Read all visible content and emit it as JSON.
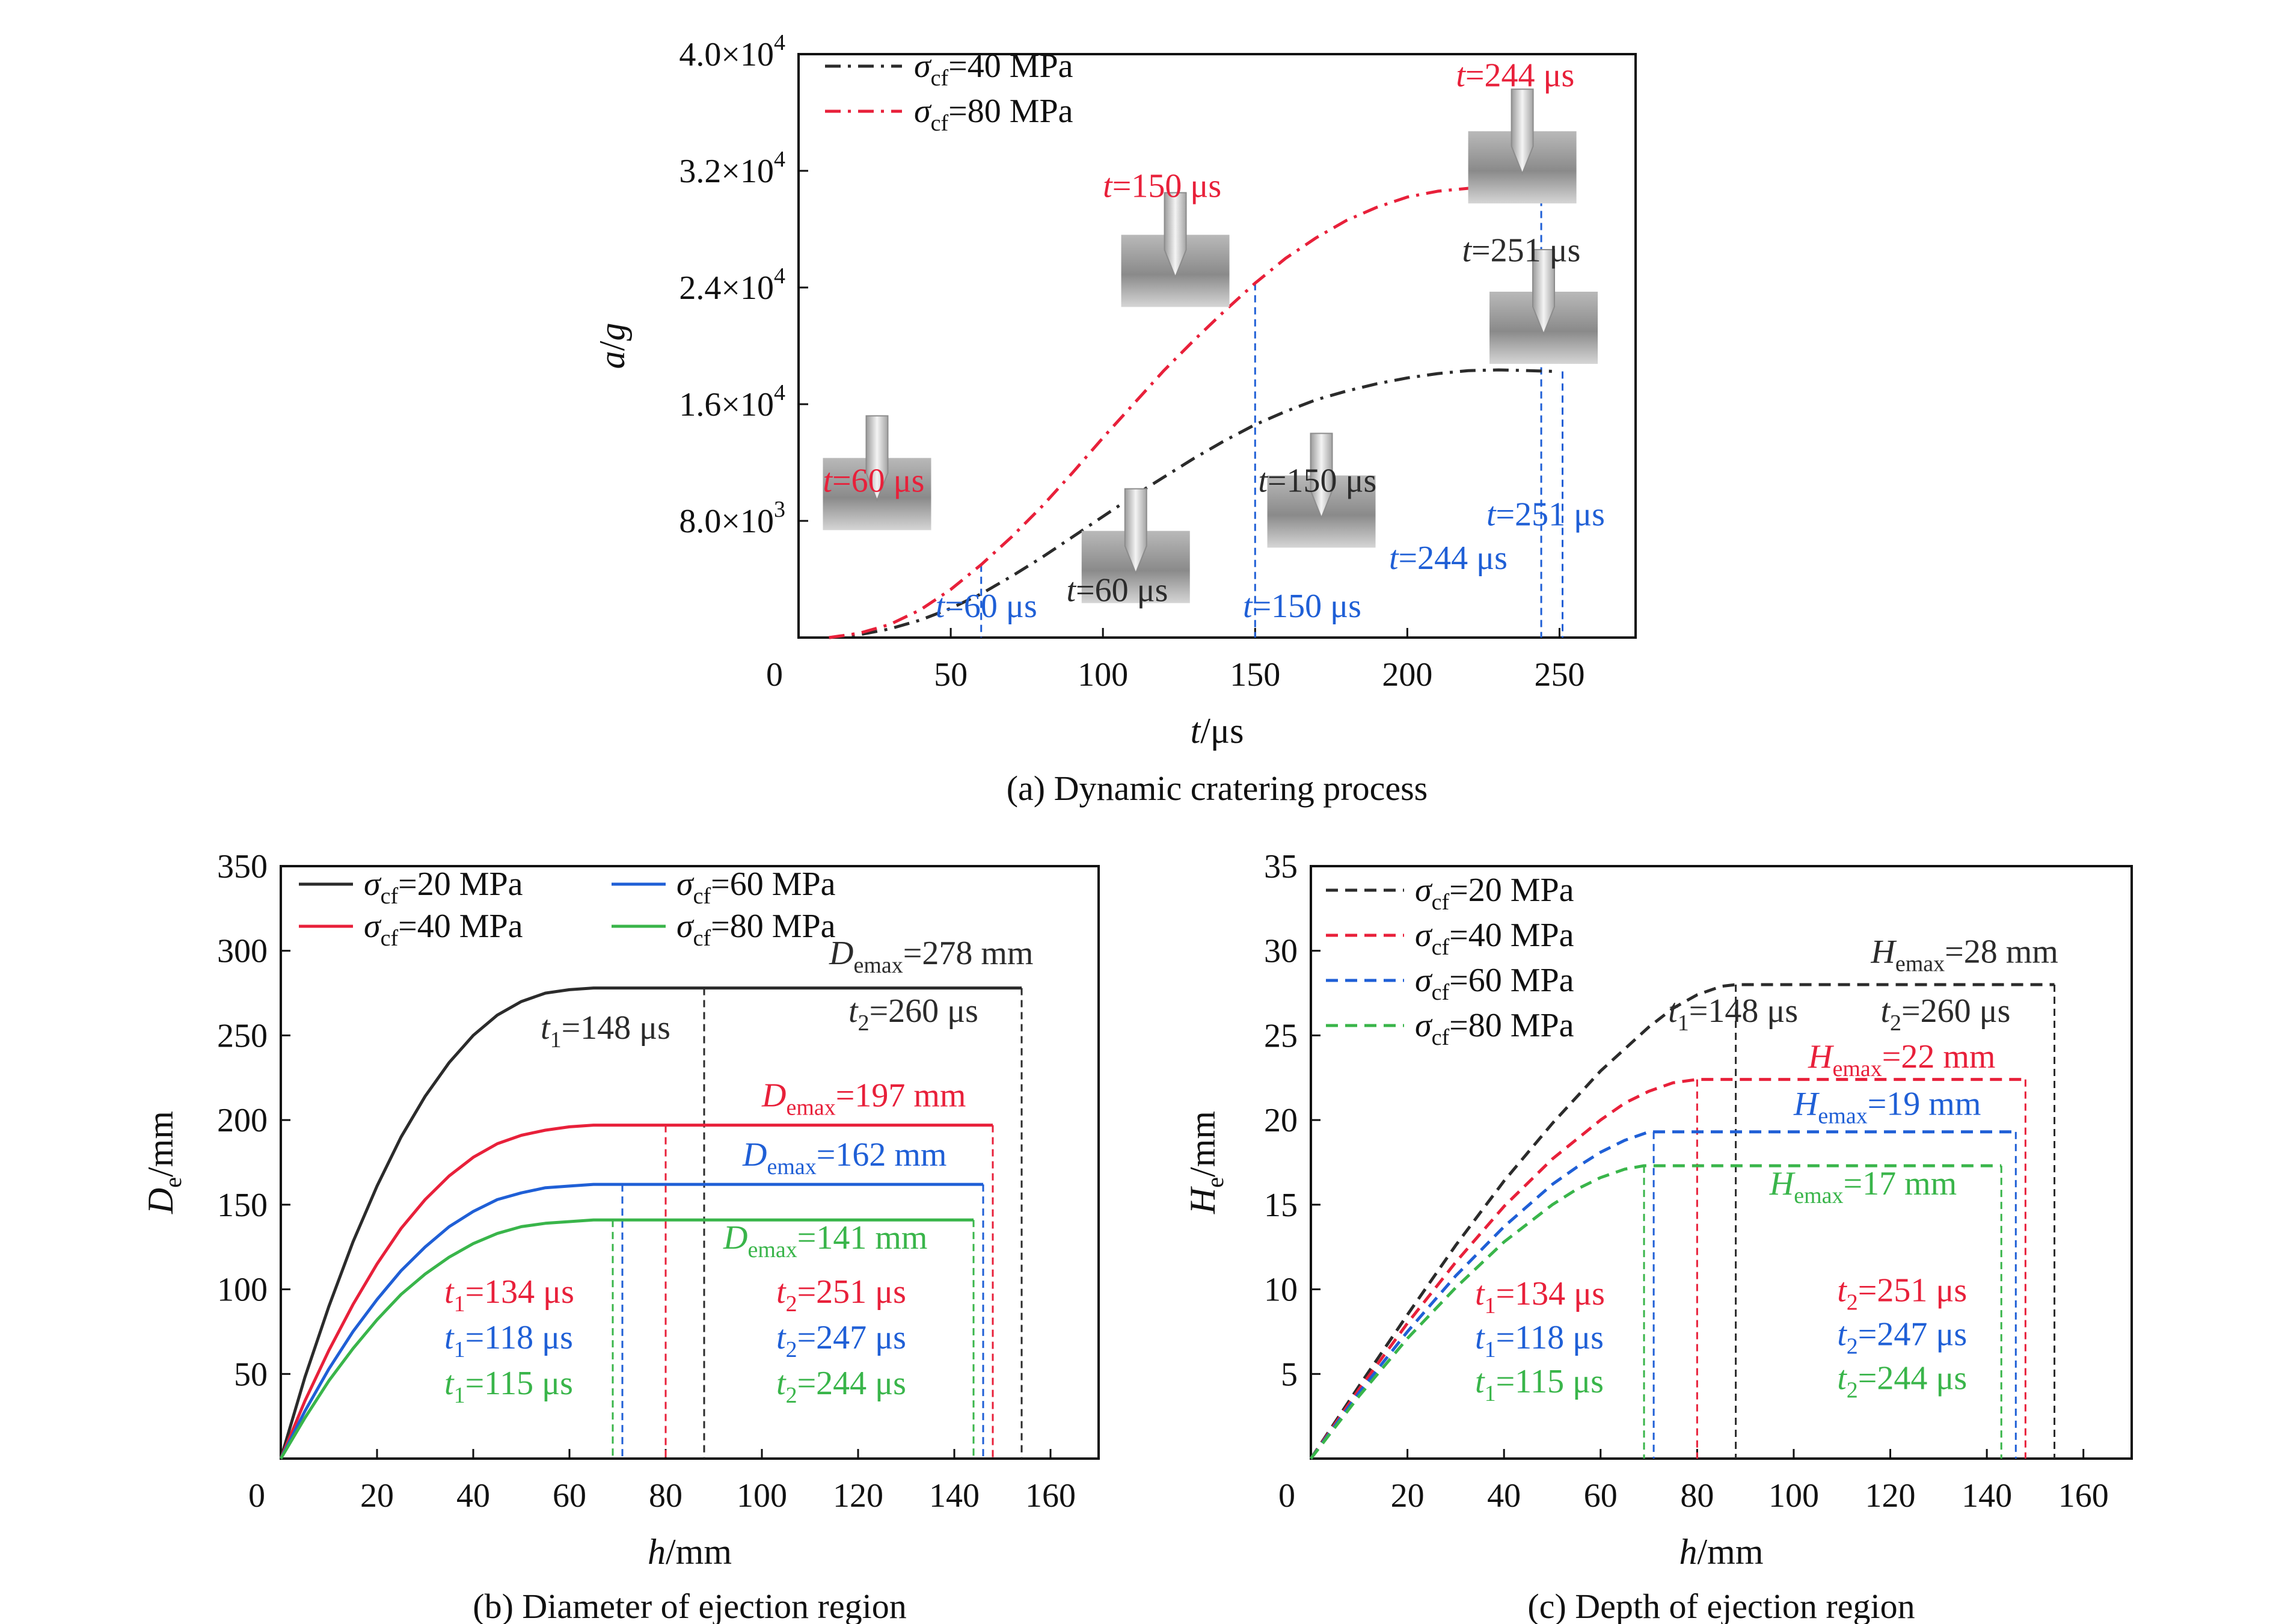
{
  "colors": {
    "black": "#2b2b2b",
    "red": "#e8203a",
    "blue": "#1f5fd6",
    "green": "#39b54a",
    "axis": "#111111"
  },
  "chart_data": [
    {
      "id": "a",
      "type": "line",
      "caption": "(a) Dynamic cratering process",
      "xlabel_var": "t",
      "xlabel_unit": "/μs",
      "ylabel": "a/g",
      "xlim": [
        0,
        275
      ],
      "ylim": [
        0,
        40000
      ],
      "xticks": [
        0,
        50,
        100,
        150,
        200,
        250
      ],
      "xtick_labels": [
        "0",
        "50",
        "100",
        "150",
        "200",
        "250"
      ],
      "yticks": [
        8000,
        16000,
        24000,
        32000,
        40000
      ],
      "ytick_mant": [
        "8.0×10",
        "1.6×10",
        "2.4×10",
        "3.2×10",
        "4.0×10"
      ],
      "ytick_exp": [
        "3",
        "4",
        "4",
        "4",
        "4"
      ],
      "legend": [
        "σ",
        "σ"
      ],
      "legend_sub": [
        "cf",
        "cf"
      ],
      "legend_rest": [
        "=40 MPa",
        "=80 MPa"
      ],
      "series": [
        {
          "name": "σcf=40 MPa",
          "color": "black",
          "dash": "dashdot",
          "x": [
            10,
            20,
            30,
            40,
            50,
            60,
            70,
            80,
            90,
            100,
            110,
            120,
            130,
            140,
            150,
            160,
            170,
            180,
            190,
            200,
            210,
            220,
            230,
            240,
            248
          ],
          "y": [
            0,
            200,
            600,
            1200,
            2000,
            3000,
            4200,
            5500,
            6900,
            8300,
            9700,
            11000,
            12300,
            13500,
            14600,
            15500,
            16300,
            16900,
            17400,
            17800,
            18100,
            18300,
            18350,
            18300,
            18250
          ]
        },
        {
          "name": "σcf=80 MPa",
          "color": "red",
          "dash": "dashdot",
          "x": [
            10,
            20,
            30,
            40,
            50,
            60,
            70,
            80,
            90,
            100,
            110,
            120,
            130,
            140,
            150,
            160,
            170,
            180,
            190,
            200,
            210,
            220,
            230,
            240,
            244
          ],
          "y": [
            0,
            300,
            900,
            1900,
            3300,
            5000,
            6900,
            9000,
            11300,
            13700,
            16000,
            18300,
            20400,
            22400,
            24300,
            26000,
            27400,
            28600,
            29500,
            30200,
            30600,
            30800,
            30900,
            30900,
            30900
          ]
        }
      ],
      "vlines": [
        {
          "x": 60,
          "y": 5000,
          "color": "blue"
        },
        {
          "x": 150,
          "y": 24300,
          "color": "blue"
        },
        {
          "x": 244,
          "y": 30900,
          "color": "blue"
        },
        {
          "x": 251,
          "y": 18250,
          "color": "blue"
        }
      ],
      "annotations": [
        {
          "var": "t",
          "rest": "=60 μs",
          "x": 8,
          "y": 10000,
          "color": "red"
        },
        {
          "var": "t",
          "rest": "=60 μs",
          "x": 88,
          "y": 2500,
          "color": "black"
        },
        {
          "var": "t",
          "rest": "=60 μs",
          "x": 45,
          "y": 1400,
          "color": "blue"
        },
        {
          "var": "t",
          "rest": "=150 μs",
          "x": 100,
          "y": 30200,
          "color": "red"
        },
        {
          "var": "t",
          "rest": "=150 μs",
          "x": 151,
          "y": 10000,
          "color": "black"
        },
        {
          "var": "t",
          "rest": "=150 μs",
          "x": 146,
          "y": 1400,
          "color": "blue"
        },
        {
          "var": "t",
          "rest": "=244 μs",
          "x": 216,
          "y": 37800,
          "color": "red"
        },
        {
          "var": "t",
          "rest": "=251 μs",
          "x": 218,
          "y": 25800,
          "color": "black"
        },
        {
          "var": "t",
          "rest": "=251 μs",
          "x": 226,
          "y": 7700,
          "color": "blue"
        },
        {
          "var": "t",
          "rest": "=244 μs",
          "x": 194,
          "y": 4700,
          "color": "blue"
        }
      ],
      "insets": [
        {
          "x": 8,
          "y": 15200
        },
        {
          "x": 93,
          "y": 10200
        },
        {
          "x": 106,
          "y": 30500
        },
        {
          "x": 154,
          "y": 14000
        },
        {
          "x": 220,
          "y": 37600
        },
        {
          "x": 227,
          "y": 26600
        }
      ]
    },
    {
      "id": "b",
      "type": "line",
      "caption": "(b) Diameter of ejection region",
      "xlabel_var": "h",
      "xlabel_unit": "/mm",
      "ylabel_var": "D",
      "ylabel_sub": "e",
      "ylabel_unit": "/mm",
      "xlim": [
        0,
        170
      ],
      "ylim": [
        0,
        350
      ],
      "xticks": [
        0,
        20,
        40,
        60,
        80,
        100,
        120,
        140,
        160
      ],
      "yticks": [
        50,
        100,
        150,
        200,
        250,
        300,
        350
      ],
      "legend": [
        {
          "sym": "σ",
          "sub": "cf",
          "rest": "=20 MPa",
          "color": "black"
        },
        {
          "sym": "σ",
          "sub": "cf",
          "rest": "=40 MPa",
          "color": "red"
        },
        {
          "sym": "σ",
          "sub": "cf",
          "rest": "=60 MPa",
          "color": "blue"
        },
        {
          "sym": "σ",
          "sub": "cf",
          "rest": "=80 MPa",
          "color": "green"
        }
      ],
      "series": [
        {
          "name": "σcf=20 MPa",
          "color": "black",
          "dash": "solid",
          "x": [
            0,
            5,
            10,
            15,
            20,
            25,
            30,
            35,
            40,
            45,
            50,
            55,
            60,
            65,
            70,
            80,
            90,
            100,
            120,
            140,
            154
          ],
          "y": [
            0,
            48,
            90,
            128,
            161,
            190,
            214,
            234,
            250,
            262,
            270,
            275,
            277,
            278,
            278,
            278,
            278,
            278,
            278,
            278,
            278
          ]
        },
        {
          "name": "σcf=40 MPa",
          "color": "red",
          "dash": "solid",
          "x": [
            0,
            5,
            10,
            15,
            20,
            25,
            30,
            35,
            40,
            45,
            50,
            55,
            60,
            65,
            70,
            80,
            100,
            120,
            140,
            148
          ],
          "y": [
            0,
            34,
            64,
            91,
            115,
            136,
            153,
            167,
            178,
            186,
            191,
            194,
            196,
            197,
            197,
            197,
            197,
            197,
            197,
            197
          ]
        },
        {
          "name": "σcf=60 MPa",
          "color": "blue",
          "dash": "solid",
          "x": [
            0,
            5,
            10,
            15,
            20,
            25,
            30,
            35,
            40,
            45,
            50,
            55,
            60,
            65,
            70,
            80,
            100,
            120,
            140,
            146
          ],
          "y": [
            0,
            28,
            53,
            75,
            94,
            111,
            125,
            137,
            146,
            153,
            157,
            160,
            161,
            162,
            162,
            162,
            162,
            162,
            162,
            162
          ]
        },
        {
          "name": "σcf=80 MPa",
          "color": "green",
          "dash": "solid",
          "x": [
            0,
            5,
            10,
            15,
            20,
            25,
            30,
            35,
            40,
            45,
            50,
            55,
            60,
            65,
            70,
            80,
            100,
            120,
            140,
            144
          ],
          "y": [
            0,
            24,
            46,
            65,
            82,
            97,
            109,
            119,
            127,
            133,
            137,
            139,
            140,
            141,
            141,
            141,
            141,
            141,
            141,
            141
          ]
        }
      ],
      "vlines": [
        {
          "x": 88,
          "y": 278,
          "color": "black"
        },
        {
          "x": 154,
          "y": 278,
          "color": "black"
        },
        {
          "x": 80,
          "y": 197,
          "color": "red"
        },
        {
          "x": 148,
          "y": 197,
          "color": "red"
        },
        {
          "x": 71,
          "y": 162,
          "color": "blue"
        },
        {
          "x": 146,
          "y": 162,
          "color": "blue"
        },
        {
          "x": 69,
          "y": 141,
          "color": "green"
        },
        {
          "x": 144,
          "y": 141,
          "color": "green"
        }
      ],
      "annotations": [
        {
          "var": "D",
          "sub": "emax",
          "rest": "=278 mm",
          "x": 114,
          "y": 292,
          "color": "black"
        },
        {
          "var": "t",
          "sub": "2",
          "rest": "=260 μs",
          "x": 118,
          "y": 258,
          "color": "black"
        },
        {
          "var": "t",
          "sub": "1",
          "rest": "=148 μs",
          "x": 54,
          "y": 248,
          "color": "black"
        },
        {
          "var": "D",
          "sub": "emax",
          "rest": "=197 mm",
          "x": 100,
          "y": 208,
          "color": "red"
        },
        {
          "var": "D",
          "sub": "emax",
          "rest": "=162 mm",
          "x": 96,
          "y": 173,
          "color": "blue"
        },
        {
          "var": "D",
          "sub": "emax",
          "rest": "=141 mm",
          "x": 92,
          "y": 124,
          "color": "green"
        },
        {
          "var": "t",
          "sub": "1",
          "rest": "=134 μs",
          "x": 34,
          "y": 92,
          "color": "red"
        },
        {
          "var": "t",
          "sub": "1",
          "rest": "=118 μs",
          "x": 34,
          "y": 65,
          "color": "blue"
        },
        {
          "var": "t",
          "sub": "1",
          "rest": "=115 μs",
          "x": 34,
          "y": 38,
          "color": "green"
        },
        {
          "var": "t",
          "sub": "2",
          "rest": "=251 μs",
          "x": 103,
          "y": 92,
          "color": "red"
        },
        {
          "var": "t",
          "sub": "2",
          "rest": "=247 μs",
          "x": 103,
          "y": 65,
          "color": "blue"
        },
        {
          "var": "t",
          "sub": "2",
          "rest": "=244 μs",
          "x": 103,
          "y": 38,
          "color": "green"
        }
      ]
    },
    {
      "id": "c",
      "type": "line",
      "caption": "(c) Depth of ejection region",
      "xlabel_var": "h",
      "xlabel_unit": "/mm",
      "ylabel_var": "H",
      "ylabel_sub": "e",
      "ylabel_unit": "/mm",
      "xlim": [
        0,
        170
      ],
      "ylim": [
        0,
        35
      ],
      "xticks": [
        0,
        20,
        40,
        60,
        80,
        100,
        120,
        140,
        160
      ],
      "yticks": [
        5,
        10,
        15,
        20,
        25,
        30,
        35
      ],
      "legend": [
        {
          "sym": "σ",
          "sub": "cf",
          "rest": "=20 MPa",
          "color": "black"
        },
        {
          "sym": "σ",
          "sub": "cf",
          "rest": "=40 MPa",
          "color": "red"
        },
        {
          "sym": "σ",
          "sub": "cf",
          "rest": "=60 MPa",
          "color": "blue"
        },
        {
          "sym": "σ",
          "sub": "cf",
          "rest": "=80 MPa",
          "color": "green"
        }
      ],
      "series": [
        {
          "name": "σcf=20 MPa",
          "color": "black",
          "dash": "dash",
          "x": [
            0,
            10,
            20,
            30,
            40,
            50,
            60,
            70,
            75,
            80,
            85,
            88,
            100,
            120,
            140,
            154
          ],
          "y": [
            0,
            4.3,
            8.5,
            12.6,
            16.4,
            19.8,
            22.9,
            25.5,
            26.6,
            27.4,
            27.9,
            28,
            28,
            28,
            28,
            28
          ]
        },
        {
          "name": "σcf=40 MPa",
          "color": "red",
          "dash": "dash",
          "x": [
            0,
            10,
            20,
            30,
            40,
            50,
            60,
            65,
            70,
            75,
            80,
            100,
            120,
            140,
            148
          ],
          "y": [
            0,
            4.1,
            8,
            11.6,
            14.9,
            17.7,
            20,
            21,
            21.7,
            22.2,
            22.4,
            22.4,
            22.4,
            22.4,
            22.4
          ]
        },
        {
          "name": "σcf=60 MPa",
          "color": "blue",
          "dash": "dash",
          "x": [
            0,
            10,
            20,
            30,
            40,
            50,
            55,
            60,
            65,
            70,
            80,
            100,
            120,
            140,
            146
          ],
          "y": [
            0,
            3.9,
            7.5,
            10.8,
            13.7,
            16.2,
            17.2,
            18.1,
            18.8,
            19.3,
            19.3,
            19.3,
            19.3,
            19.3,
            19.3
          ]
        },
        {
          "name": "σcf=80 MPa",
          "color": "green",
          "dash": "dash",
          "x": [
            0,
            10,
            20,
            30,
            40,
            50,
            55,
            60,
            65,
            69,
            80,
            100,
            120,
            140,
            143
          ],
          "y": [
            0,
            3.7,
            7.1,
            10.1,
            12.8,
            15,
            15.9,
            16.6,
            17.1,
            17.3,
            17.3,
            17.3,
            17.3,
            17.3,
            17.3
          ]
        }
      ],
      "vlines": [
        {
          "x": 88,
          "y": 28,
          "color": "black"
        },
        {
          "x": 154,
          "y": 28,
          "color": "black"
        },
        {
          "x": 80,
          "y": 22.4,
          "color": "red"
        },
        {
          "x": 148,
          "y": 22.4,
          "color": "red"
        },
        {
          "x": 71,
          "y": 19.3,
          "color": "blue"
        },
        {
          "x": 146,
          "y": 19.3,
          "color": "blue"
        },
        {
          "x": 69,
          "y": 17.3,
          "color": "green"
        },
        {
          "x": 143,
          "y": 17.3,
          "color": "green"
        }
      ],
      "annotations": [
        {
          "var": "H",
          "sub": "emax",
          "rest": "=28 mm",
          "x": 116,
          "y": 29.3,
          "color": "black"
        },
        {
          "var": "t",
          "sub": "1",
          "rest": "=148 μs",
          "x": 74,
          "y": 25.8,
          "color": "black"
        },
        {
          "var": "t",
          "sub": "2",
          "rest": "=260 μs",
          "x": 118,
          "y": 25.8,
          "color": "black"
        },
        {
          "var": "H",
          "sub": "emax",
          "rest": "=22 mm",
          "x": 103,
          "y": 23.1,
          "color": "red"
        },
        {
          "var": "H",
          "sub": "emax",
          "rest": "=19 mm",
          "x": 100,
          "y": 20.3,
          "color": "blue"
        },
        {
          "var": "H",
          "sub": "emax",
          "rest": "=17 mm",
          "x": 95,
          "y": 15.6,
          "color": "green"
        },
        {
          "var": "t",
          "sub": "1",
          "rest": "=134 μs",
          "x": 34,
          "y": 9.1,
          "color": "red"
        },
        {
          "var": "t",
          "sub": "1",
          "rest": "=118 μs",
          "x": 34,
          "y": 6.5,
          "color": "blue"
        },
        {
          "var": "t",
          "sub": "1",
          "rest": "=115 μs",
          "x": 34,
          "y": 3.9,
          "color": "green"
        },
        {
          "var": "t",
          "sub": "2",
          "rest": "=251 μs",
          "x": 109,
          "y": 9.3,
          "color": "red"
        },
        {
          "var": "t",
          "sub": "2",
          "rest": "=247 μs",
          "x": 109,
          "y": 6.7,
          "color": "blue"
        },
        {
          "var": "t",
          "sub": "2",
          "rest": "=244 μs",
          "x": 109,
          "y": 4.1,
          "color": "green"
        }
      ]
    }
  ]
}
